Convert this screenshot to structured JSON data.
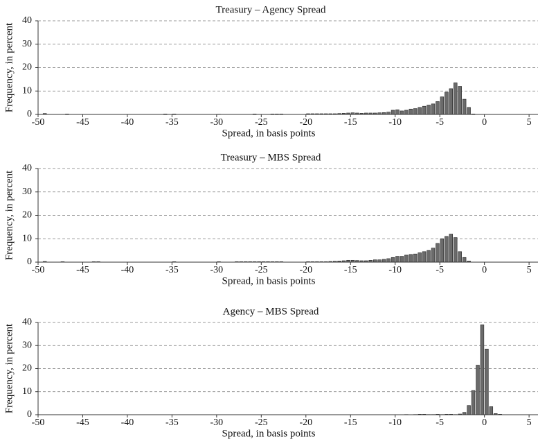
{
  "chart_data": [
    {
      "type": "histogram",
      "title": "Treasury – Agency Spread",
      "xlabel": "Spread, in basis points",
      "ylabel": "Frequency, in percent",
      "bins": [
        -50,
        -49.5,
        -49,
        -48.5,
        -48,
        -47.5,
        -47,
        -46.5,
        -46,
        -45.5,
        -45,
        -44.5,
        -44,
        -43.5,
        -43,
        -42.5,
        -42,
        -41.5,
        -41,
        -40.5,
        -40,
        -39.5,
        -39,
        -38.5,
        -38,
        -37.5,
        -37,
        -36.5,
        -36,
        -35.5,
        -35,
        -34.5,
        -34,
        -33.5,
        -33,
        -32.5,
        -32,
        -31.5,
        -31,
        -30.5,
        -30,
        -29.5,
        -29,
        -28.5,
        -28,
        -27.5,
        -27,
        -26.5,
        -26,
        -25.5,
        -25,
        -24.5,
        -24,
        -23.5,
        -23,
        -22.5,
        -22,
        -21.5,
        -21,
        -20.5,
        -20,
        -19.5,
        -19,
        -18.5,
        -18,
        -17.5,
        -17,
        -16.5,
        -16,
        -15.5,
        -15,
        -14.5,
        -14,
        -13.5,
        -13,
        -12.5,
        -12,
        -11.5,
        -11,
        -10.5,
        -10,
        -9.5,
        -9,
        -8.5,
        -8,
        -7.5,
        -7,
        -6.5,
        -6,
        -5.5,
        -5,
        -4.5,
        -4,
        -3.5,
        -3,
        -2.5,
        -2,
        -1.5,
        -1,
        -0.5,
        0,
        0.5,
        1,
        1.5,
        2,
        2.5,
        3
      ],
      "values": [
        0,
        0.4,
        0,
        0,
        0,
        0,
        0.2,
        0,
        0,
        0,
        0,
        0,
        0,
        0,
        0,
        0,
        0,
        0,
        0,
        0,
        0,
        0,
        0,
        0,
        0,
        0,
        0,
        0,
        0.2,
        0,
        0.2,
        0,
        0,
        0,
        0,
        0,
        0,
        0,
        0,
        0,
        0.1,
        0,
        0,
        0,
        0,
        0,
        0,
        0,
        0.2,
        0,
        0,
        0,
        0.2,
        0.2,
        0.2,
        0,
        0,
        0,
        0,
        0,
        0.3,
        0.3,
        0.3,
        0.3,
        0.3,
        0.3,
        0.3,
        0.4,
        0.5,
        0.6,
        0.7,
        0.6,
        0.5,
        0.6,
        0.6,
        0.6,
        0.7,
        0.8,
        1.0,
        1.8,
        2,
        1.5,
        1.8,
        2.3,
        2.5,
        3,
        3.5,
        4,
        4.5,
        5.5,
        7.5,
        9.5,
        11,
        13.5,
        12,
        6.5,
        3,
        0.2,
        0,
        0,
        0,
        0,
        0,
        0,
        0,
        0
      ],
      "color": "#6b6b6b",
      "xlim": [
        -50,
        6
      ],
      "xticks": [
        -50,
        -45,
        -40,
        -35,
        -30,
        -25,
        -20,
        -15,
        -10,
        -5,
        0,
        5
      ],
      "ylim": [
        0,
        40
      ],
      "yticks": [
        0,
        10,
        20,
        30,
        40
      ],
      "grid": true
    },
    {
      "type": "histogram",
      "title": "Treasury – MBS Spread",
      "xlabel": "Spread, in basis points",
      "ylabel": "Frequency, in percent",
      "bins": [
        -50,
        -49.5,
        -49,
        -48.5,
        -48,
        -47.5,
        -47,
        -46.5,
        -46,
        -45.5,
        -45,
        -44.5,
        -44,
        -43.5,
        -43,
        -42.5,
        -42,
        -41.5,
        -41,
        -40.5,
        -40,
        -39.5,
        -39,
        -38.5,
        -38,
        -37.5,
        -37,
        -36.5,
        -36,
        -35.5,
        -35,
        -34.5,
        -34,
        -33.5,
        -33,
        -32.5,
        -32,
        -31.5,
        -31,
        -30.5,
        -30,
        -29.5,
        -29,
        -28.5,
        -28,
        -27.5,
        -27,
        -26.5,
        -26,
        -25.5,
        -25,
        -24.5,
        -24,
        -23.5,
        -23,
        -22.5,
        -22,
        -21.5,
        -21,
        -20.5,
        -20,
        -19.5,
        -19,
        -18.5,
        -18,
        -17.5,
        -17,
        -16.5,
        -16,
        -15.5,
        -15,
        -14.5,
        -14,
        -13.5,
        -13,
        -12.5,
        -12,
        -11.5,
        -11,
        -10.5,
        -10,
        -9.5,
        -9,
        -8.5,
        -8,
        -7.5,
        -7,
        -6.5,
        -6,
        -5.5,
        -5,
        -4.5,
        -4,
        -3.5,
        -3,
        -2.5,
        -2,
        -1.5,
        -1,
        -0.5,
        0,
        0.5,
        1,
        1.5,
        2,
        2.5,
        3
      ],
      "values": [
        0,
        0.3,
        0,
        0,
        0,
        0.2,
        0,
        0,
        0,
        0,
        0,
        0,
        0.2,
        0.2,
        0,
        0,
        0,
        0,
        0,
        0,
        0,
        0,
        0,
        0,
        0,
        0,
        0,
        0,
        0,
        0,
        0.2,
        0,
        0,
        0,
        0,
        0,
        0,
        0,
        0,
        0,
        0.2,
        0,
        0,
        0,
        0.2,
        0.2,
        0.2,
        0.2,
        0.2,
        0.2,
        0.2,
        0.2,
        0.2,
        0.2,
        0.2,
        0,
        0,
        0,
        0,
        0,
        0.2,
        0.2,
        0.2,
        0.2,
        0.2,
        0.3,
        0.4,
        0.5,
        0.6,
        0.8,
        0.8,
        0.7,
        0.6,
        0.6,
        0.8,
        1,
        1,
        1.2,
        1.5,
        2,
        2.5,
        2.5,
        3,
        3.3,
        3.5,
        4,
        4.5,
        5,
        6,
        8,
        10,
        11,
        12,
        10.5,
        4.5,
        2,
        0.5,
        0,
        0,
        0,
        0,
        0,
        0,
        0,
        0,
        0
      ],
      "color": "#6b6b6b",
      "xlim": [
        -50,
        6
      ],
      "xticks": [
        -50,
        -45,
        -40,
        -35,
        -30,
        -25,
        -20,
        -15,
        -10,
        -5,
        0,
        5
      ],
      "ylim": [
        0,
        40
      ],
      "yticks": [
        0,
        10,
        20,
        30,
        40
      ],
      "grid": true
    },
    {
      "type": "histogram",
      "title": "Agency – MBS Spread",
      "xlabel": "Spread, in basis points",
      "ylabel": "Frequency, in percent",
      "bins": [
        -50,
        -49.5,
        -49,
        -48.5,
        -48,
        -47.5,
        -47,
        -46.5,
        -46,
        -45.5,
        -45,
        -44.5,
        -44,
        -43.5,
        -43,
        -42.5,
        -42,
        -41.5,
        -41,
        -40.5,
        -40,
        -39.5,
        -39,
        -38.5,
        -38,
        -37.5,
        -37,
        -36.5,
        -36,
        -35.5,
        -35,
        -34.5,
        -34,
        -33.5,
        -33,
        -32.5,
        -32,
        -31.5,
        -31,
        -30.5,
        -30,
        -29.5,
        -29,
        -28.5,
        -28,
        -27.5,
        -27,
        -26.5,
        -26,
        -25.5,
        -25,
        -24.5,
        -24,
        -23.5,
        -23,
        -22.5,
        -22,
        -21.5,
        -21,
        -20.5,
        -20,
        -19.5,
        -19,
        -18.5,
        -18,
        -17.5,
        -17,
        -16.5,
        -16,
        -15.5,
        -15,
        -14.5,
        -14,
        -13.5,
        -13,
        -12.5,
        -12,
        -11.5,
        -11,
        -10.5,
        -10,
        -9.5,
        -9,
        -8.5,
        -8,
        -7.5,
        -7,
        -6.5,
        -6,
        -5.5,
        -5,
        -4.5,
        -4,
        -3.5,
        -3,
        -2.5,
        -2,
        -1.5,
        -1,
        -0.5,
        0,
        0.5,
        1,
        1.5,
        2,
        2.5,
        3
      ],
      "values": [
        0,
        0,
        0,
        0,
        0,
        0,
        0,
        0,
        0,
        0,
        0,
        0,
        0,
        0,
        0,
        0,
        0,
        0,
        0,
        0,
        0,
        0,
        0,
        0,
        0,
        0,
        0,
        0,
        0,
        0,
        0,
        0,
        0,
        0,
        0,
        0,
        0,
        0,
        0,
        0,
        0,
        0,
        0,
        0,
        0,
        0,
        0,
        0,
        0,
        0,
        0,
        0,
        0,
        0,
        0,
        0,
        0,
        0,
        0,
        0,
        0,
        0,
        0,
        0,
        0,
        0,
        0,
        0,
        0,
        0,
        0,
        0,
        0,
        0,
        0,
        0,
        0,
        0,
        0,
        0,
        0,
        0,
        0.1,
        0,
        0.1,
        0.2,
        0.2,
        0.1,
        0.1,
        0.2,
        0.1,
        0.2,
        0.2,
        0.1,
        0.3,
        1,
        4,
        10.5,
        21.5,
        39,
        28.5,
        3.5,
        0.5,
        0.2,
        0,
        0
      ],
      "color": "#6b6b6b",
      "xlim": [
        -50,
        6
      ],
      "xticks": [
        -50,
        -45,
        -40,
        -35,
        -30,
        -25,
        -20,
        -15,
        -10,
        -5,
        0,
        5
      ],
      "ylim": [
        0,
        40
      ],
      "yticks": [
        0,
        10,
        20,
        30,
        40
      ],
      "grid": true
    }
  ]
}
